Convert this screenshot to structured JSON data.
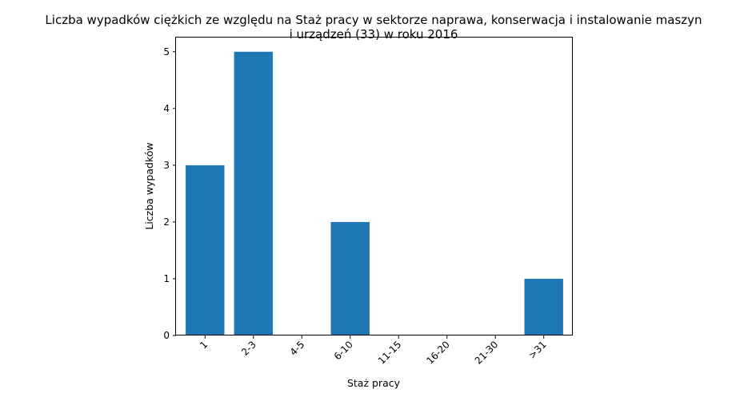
{
  "chart_data": {
    "type": "bar",
    "title_lines": [
      "Liczba wypadków ciężkich ze względu na Staż pracy w sektorze naprawa, konserwacja i instalowanie maszyn",
      "i urządzeń  (33) w roku 2016"
    ],
    "xlabel": "Staż pracy",
    "ylabel": "Liczba wypadków",
    "categories": [
      "1",
      "2-3",
      "4-5",
      "6-10",
      "11-15",
      "16-20",
      "21-30",
      ">31"
    ],
    "values": [
      3,
      5,
      0,
      2,
      0,
      0,
      0,
      1
    ],
    "ylim": [
      0,
      5.25
    ],
    "yticks": [
      0,
      1,
      2,
      3,
      4,
      5
    ],
    "bar_color": "#1f77b4",
    "grid": false,
    "legend": "none"
  }
}
